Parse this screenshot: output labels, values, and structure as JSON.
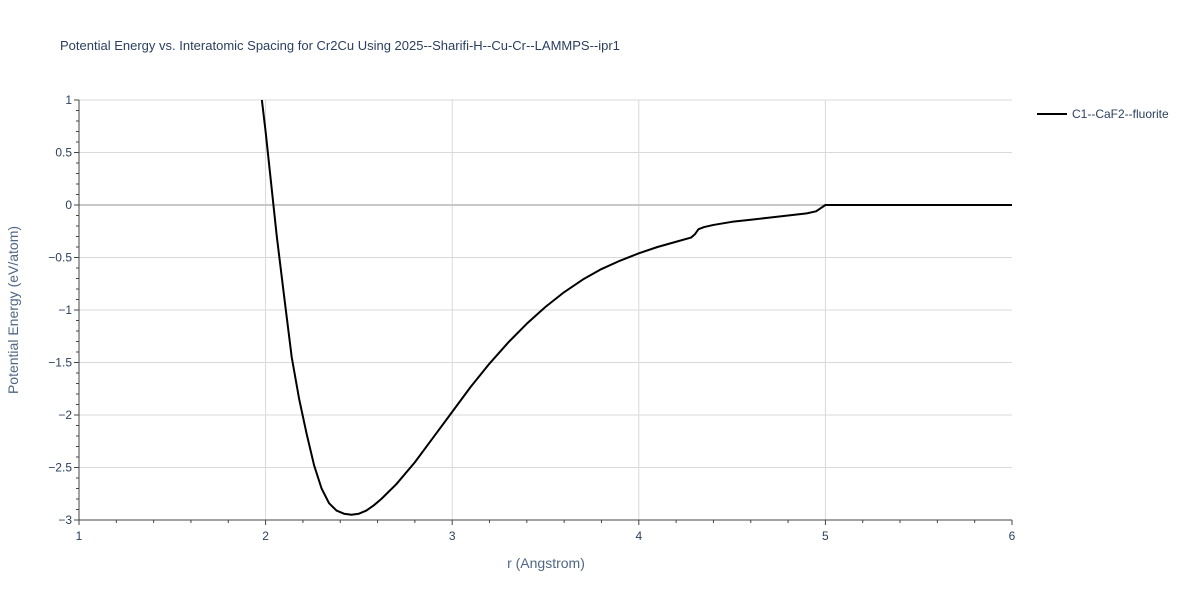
{
  "chart_data": {
    "type": "line",
    "title": "Potential Energy vs. Interatomic Spacing for Cr2Cu Using 2025--Sharifi-H--Cu-Cr--LAMMPS--ipr1",
    "xlabel": "r (Angstrom)",
    "ylabel": "Potential Energy (eV/atom)",
    "xlim": [
      1,
      6
    ],
    "ylim": [
      -3,
      1
    ],
    "x_ticks": [
      1,
      2,
      3,
      4,
      5,
      6
    ],
    "x_tick_labels": [
      "1",
      "2",
      "3",
      "4",
      "5",
      "6"
    ],
    "y_ticks": [
      1,
      0.5,
      0,
      -0.5,
      -1,
      -1.5,
      -2,
      -2.5,
      -3
    ],
    "y_tick_labels": [
      "1",
      "0.5",
      "0",
      "−0.5",
      "−1",
      "−1.5",
      "−2",
      "−2.5",
      "−3"
    ],
    "grid": true,
    "legend_position": "top-right",
    "series": [
      {
        "name": "C1--CaF2--fluorite",
        "color": "#000000",
        "x": [
          1.98,
          2.0,
          2.03,
          2.06,
          2.1,
          2.14,
          2.18,
          2.22,
          2.26,
          2.3,
          2.34,
          2.38,
          2.42,
          2.46,
          2.5,
          2.54,
          2.58,
          2.62,
          2.66,
          2.7,
          2.8,
          2.9,
          3.0,
          3.1,
          3.2,
          3.3,
          3.4,
          3.5,
          3.6,
          3.7,
          3.8,
          3.9,
          4.0,
          4.1,
          4.2,
          4.28,
          4.3,
          4.32,
          4.35,
          4.4,
          4.5,
          4.6,
          4.7,
          4.8,
          4.9,
          4.95,
          5.0,
          5.2,
          5.4,
          5.6,
          5.8,
          6.0
        ],
        "values": [
          1.0,
          0.7,
          0.2,
          -0.3,
          -0.88,
          -1.45,
          -1.85,
          -2.18,
          -2.48,
          -2.7,
          -2.84,
          -2.91,
          -2.94,
          -2.95,
          -2.94,
          -2.91,
          -2.86,
          -2.8,
          -2.73,
          -2.66,
          -2.45,
          -2.21,
          -1.97,
          -1.73,
          -1.51,
          -1.31,
          -1.13,
          -0.97,
          -0.83,
          -0.71,
          -0.61,
          -0.53,
          -0.46,
          -0.4,
          -0.35,
          -0.31,
          -0.28,
          -0.23,
          -0.21,
          -0.19,
          -0.16,
          -0.14,
          -0.12,
          -0.1,
          -0.08,
          -0.06,
          0.0,
          0.0,
          0.0,
          0.0,
          0.0,
          0.0
        ]
      }
    ]
  }
}
